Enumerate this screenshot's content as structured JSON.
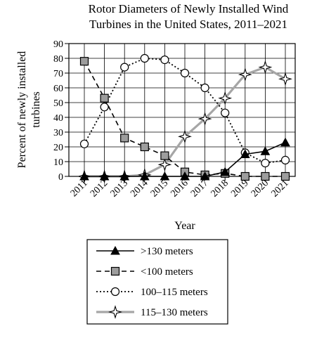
{
  "chart_data": {
    "type": "line",
    "title": "Rotor Diameters of Newly Installed Wind Turbines in the United States, 2011–2021",
    "title_lines": [
      "Rotor Diameters of Newly Installed Wind",
      "Turbines in the United States, 2011–2021"
    ],
    "xlabel": "Year",
    "ylabel": "Percent of newly installed turbines",
    "ylabel_lines": [
      "Percent of newly installed",
      "turbines"
    ],
    "x": [
      "2011",
      "2012",
      "2013",
      "2014",
      "2015",
      "2016",
      "2017",
      "2018",
      "2019",
      "2020",
      "2021"
    ],
    "yticks": [
      0,
      10,
      20,
      30,
      40,
      50,
      60,
      70,
      80,
      90
    ],
    "ylim": [
      0,
      90
    ],
    "grid": true,
    "legend_position": "bottom",
    "series": [
      {
        "name": ">130 meters",
        "style": "solid-black",
        "marker": "triangle",
        "values": [
          0,
          0,
          0,
          0,
          0,
          0,
          0,
          3,
          15,
          17,
          23
        ]
      },
      {
        "name": "<100 meters",
        "style": "dashed-black",
        "marker": "square",
        "values": [
          78,
          53,
          26,
          20,
          14,
          3,
          1,
          2,
          0,
          0,
          0
        ]
      },
      {
        "name": "100–115 meters",
        "style": "dotted-black",
        "marker": "circle",
        "values": [
          22,
          47,
          74,
          80,
          79,
          70,
          60,
          43,
          16,
          9,
          11
        ]
      },
      {
        "name": "115–130 meters",
        "style": "solid-gray",
        "marker": "star",
        "values": [
          0,
          0,
          0,
          1,
          8,
          27,
          39,
          53,
          69,
          74,
          66
        ]
      }
    ]
  }
}
